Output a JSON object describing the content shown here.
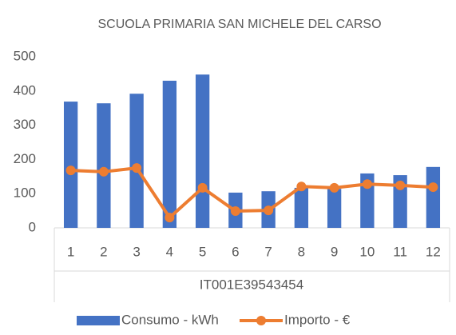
{
  "chart_data": {
    "type": "combo",
    "title": "SCUOLA PRIMARIA SAN MICHELE DEL CARSO",
    "categories": [
      "1",
      "2",
      "3",
      "4",
      "5",
      "6",
      "7",
      "8",
      "9",
      "10",
      "11",
      "12"
    ],
    "group_label": "IT001E39543454",
    "series": [
      {
        "name": "Consumo - kWh",
        "type": "bar",
        "color": "#4472c4",
        "values": [
          369,
          364,
          392,
          430,
          448,
          103,
          107,
          117,
          114,
          159,
          154,
          178
        ]
      },
      {
        "name": "Importo - €",
        "type": "line",
        "color": "#ed7d31",
        "values": [
          168,
          164,
          175,
          30,
          117,
          49,
          51,
          121,
          117,
          128,
          124,
          119
        ]
      }
    ],
    "ylim": [
      0,
      500
    ],
    "yticks": [
      0,
      100,
      200,
      300,
      400,
      500
    ],
    "grid": false,
    "legend": "bottom"
  }
}
